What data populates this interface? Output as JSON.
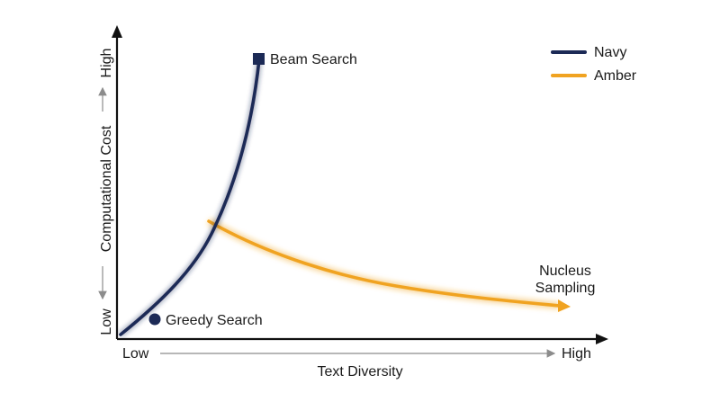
{
  "legend": {
    "items": [
      {
        "label": "Navy",
        "color": "#1c2a56"
      },
      {
        "label": "Amber",
        "color": "#f0a321"
      }
    ]
  },
  "axes": {
    "x_title": "Text Diversity",
    "x_low": "Low",
    "x_high": "High",
    "y_title": "Computational Cost",
    "y_low": "Low",
    "y_high": "High"
  },
  "points": {
    "beam_search": "Beam Search",
    "greedy_search": "Greedy Search",
    "nucleus_line1": "Nucleus",
    "nucleus_line2": "Sampling"
  },
  "colors": {
    "navy": "#1c2a56",
    "amber": "#f0a321",
    "axis": "#111111",
    "guide": "#8c8c8c"
  }
}
